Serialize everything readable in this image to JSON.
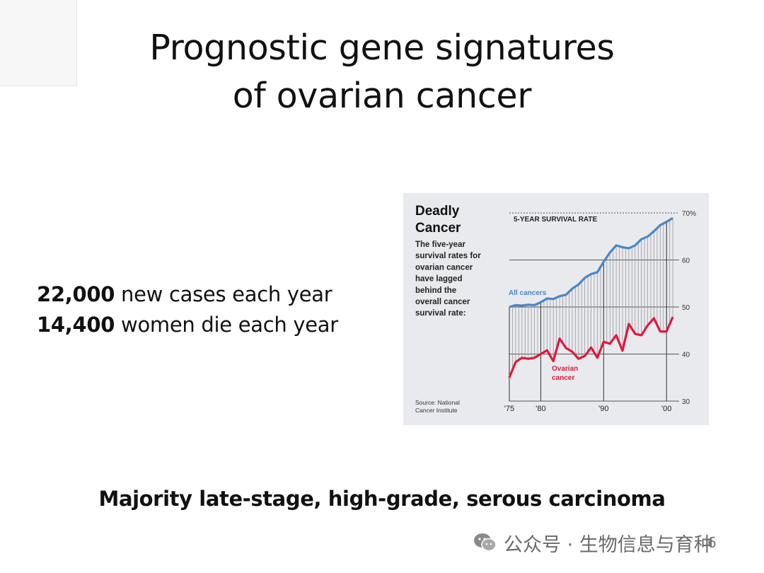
{
  "title": {
    "line1": "Prognostic gene signatures",
    "line2": "of ovarian cancer"
  },
  "stats": [
    {
      "number": "22,000",
      "text": " new cases each year"
    },
    {
      "number": "14,400",
      "text": " women die each year"
    }
  ],
  "footer": "Majority late-stage, high-grade, serous carcinoma",
  "watermark": "公众号 · 生物信息与育种",
  "page_number": "6",
  "colors": {
    "all_cancers": "#4a86c6",
    "ovarian": "#e0183d",
    "panel_bg": "#e9eaee",
    "grid": "#555555"
  },
  "chart_data": {
    "type": "line",
    "title": "Deadly Cancer",
    "subtitle": "5-YEAR SURVIVAL RATE",
    "description_lines": [
      "The five-year",
      "survival rates for",
      "ovarian cancer",
      "have lagged",
      "behind the",
      "overall cancer",
      "survival rate:"
    ],
    "source_lines": [
      "Source: National",
      "Cancer Institute"
    ],
    "xlim": [
      1975,
      2002
    ],
    "ylim": [
      30,
      70
    ],
    "x_ticks": [
      {
        "value": 1975,
        "label": "'75"
      },
      {
        "value": 1980,
        "label": "'80"
      },
      {
        "value": 1990,
        "label": "'90"
      },
      {
        "value": 2000,
        "label": "'00"
      }
    ],
    "y_ticks": [
      {
        "value": 70,
        "label": "70%"
      },
      {
        "value": 60,
        "label": "60"
      },
      {
        "value": 50,
        "label": "50"
      },
      {
        "value": 40,
        "label": "40"
      },
      {
        "value": 30,
        "label": "30"
      }
    ],
    "x": [
      1975,
      1976,
      1977,
      1978,
      1979,
      1980,
      1981,
      1982,
      1983,
      1984,
      1985,
      1986,
      1987,
      1988,
      1989,
      1990,
      1991,
      1992,
      1993,
      1994,
      1995,
      1996,
      1997,
      1998,
      1999,
      2000,
      2001
    ],
    "series": [
      {
        "name": "All cancers",
        "label_lines": [
          "All cancers"
        ],
        "values": [
          50.0,
          50.4,
          50.3,
          50.5,
          50.4,
          51.0,
          51.8,
          51.7,
          52.3,
          52.6,
          53.9,
          54.8,
          56.2,
          57.0,
          57.4,
          59.6,
          61.6,
          63.1,
          62.7,
          62.5,
          63.1,
          64.4,
          65.0,
          66.1,
          67.4,
          68.1,
          68.9
        ]
      },
      {
        "name": "Ovarian cancer",
        "label_lines": [
          "Ovarian",
          "cancer"
        ],
        "values": [
          35.0,
          38.3,
          39.2,
          39.0,
          39.2,
          40.0,
          40.8,
          38.5,
          43.3,
          41.3,
          40.5,
          39.0,
          39.6,
          41.4,
          39.2,
          42.6,
          42.2,
          44.0,
          40.7,
          46.4,
          44.3,
          44.0,
          46.1,
          47.6,
          44.8,
          44.8,
          47.9
        ]
      }
    ]
  }
}
